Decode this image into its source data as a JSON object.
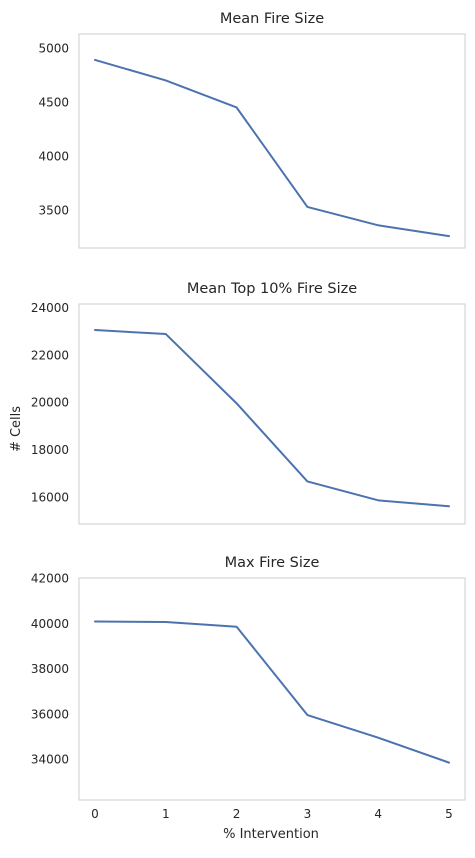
{
  "figure": {
    "ylabel": "# Cells",
    "xlabel": "% Intervention",
    "line_color": "#4c72b0"
  },
  "chart_data": [
    {
      "type": "line",
      "title": "Mean Fire Size",
      "x": [
        0,
        1,
        2,
        3,
        4,
        5
      ],
      "y": [
        4890,
        4700,
        4450,
        3530,
        3360,
        3260
      ],
      "ylim": [
        3150,
        5130
      ],
      "yticks": [
        3500,
        4000,
        4500,
        5000
      ],
      "xticks": [
        0,
        1,
        2,
        3,
        4,
        5
      ],
      "show_xticklabels": false,
      "grid": false
    },
    {
      "type": "line",
      "title": "Mean Top 10% Fire Size",
      "x": [
        0,
        1,
        2,
        3,
        4,
        5
      ],
      "y": [
        23050,
        22880,
        19950,
        16650,
        15850,
        15600
      ],
      "ylim": [
        14850,
        24150
      ],
      "yticks": [
        16000,
        18000,
        20000,
        22000,
        24000
      ],
      "xticks": [
        0,
        1,
        2,
        3,
        4,
        5
      ],
      "show_xticklabels": false,
      "grid": false
    },
    {
      "type": "line",
      "title": "Max Fire Size",
      "x": [
        0,
        1,
        2,
        3,
        4,
        5
      ],
      "y": [
        40080,
        40060,
        39850,
        35950,
        34950,
        33850
      ],
      "ylim": [
        32200,
        42000
      ],
      "yticks": [
        34000,
        36000,
        38000,
        40000,
        42000
      ],
      "xticks": [
        0,
        1,
        2,
        3,
        4,
        5
      ],
      "show_xticklabels": true,
      "grid": false
    }
  ]
}
